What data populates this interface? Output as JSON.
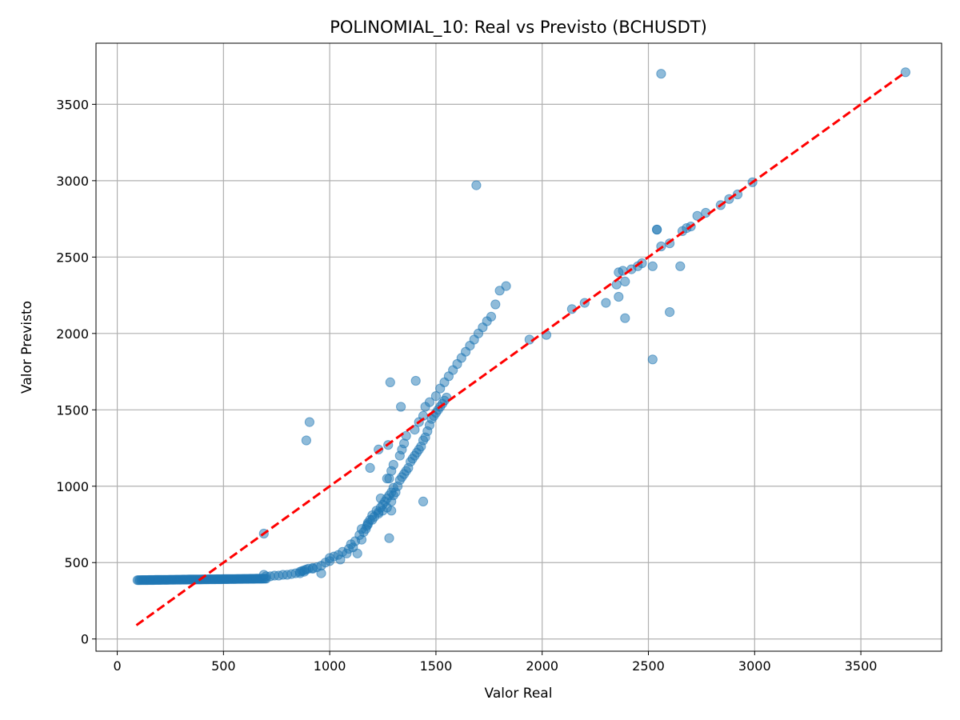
{
  "chart_data": {
    "type": "scatter",
    "title": "POLINOMIAL_10: Real vs Previsto (BCHUSDT)",
    "xlabel": "Valor Real",
    "ylabel": "Valor Previsto",
    "xlim": [
      -100,
      3880
    ],
    "ylim": [
      -80,
      3900
    ],
    "xticks": [
      0,
      500,
      1000,
      1500,
      2000,
      2500,
      3000,
      3500
    ],
    "yticks": [
      0,
      500,
      1000,
      1500,
      2000,
      2500,
      3000,
      3500
    ],
    "grid": true,
    "legend": "none",
    "colors": {
      "points": "#1f77b4",
      "reference_line": "#ff0000",
      "grid": "#b0b0b0"
    },
    "reference_line": {
      "style": "dashed",
      "x": [
        90,
        3710
      ],
      "y": [
        90,
        3710
      ]
    },
    "series": [
      {
        "flat_region": {
          "x_start": 95,
          "x_end": 700,
          "x_step": 6,
          "y_start": 385,
          "y_end": 395
        },
        "x": [
          700,
          720,
          740,
          760,
          780,
          800,
          820,
          840,
          860,
          870,
          880,
          890,
          900,
          920,
          940,
          960,
          980,
          1000,
          690,
          860,
          880,
          920,
          960,
          1000,
          1020,
          1040,
          1050,
          1060,
          1080,
          1090,
          1100,
          1110,
          1120,
          1130,
          1140,
          1150,
          1160,
          1170,
          1175,
          1180,
          1190,
          1200,
          1210,
          1220,
          1230,
          1240,
          1250,
          1260,
          1270,
          1280,
          1290,
          1300,
          1150,
          1180,
          1200,
          1230,
          1250,
          1270,
          1290,
          1300,
          1310,
          1320,
          1330,
          1340,
          1350,
          1360,
          1370,
          1380,
          1390,
          1400,
          1410,
          1420,
          1430,
          1440,
          1450,
          1460,
          1470,
          1480,
          1490,
          1500,
          1510,
          1520,
          1530,
          1540,
          1550,
          1280,
          1290,
          1300,
          1330,
          1340,
          1350,
          1360,
          1400,
          1420,
          1440,
          1450,
          1470,
          1500,
          1520,
          1540,
          1560,
          1580,
          1600,
          1620,
          1640,
          1660,
          1680,
          1700,
          1720,
          1740,
          1760,
          1780,
          1800,
          1830,
          1190,
          1230,
          1275,
          1285,
          1335,
          1405,
          1440,
          1280,
          1290,
          1240,
          1270,
          890,
          905,
          690,
          1690,
          1940,
          2020,
          2140,
          2200,
          2300,
          2350,
          2360,
          2390,
          2420,
          2450,
          2470,
          2520,
          2540,
          2560,
          2600,
          2660,
          2680,
          2700,
          2730,
          2770,
          2840,
          2880,
          2920,
          2990,
          3710,
          2360,
          2390,
          2520,
          2600,
          2650,
          2540,
          2560,
          2380
        ],
        "y": [
          410,
          410,
          415,
          415,
          420,
          420,
          425,
          430,
          440,
          445,
          450,
          455,
          460,
          465,
          470,
          480,
          500,
          510,
          420,
          430,
          440,
          460,
          430,
          530,
          540,
          550,
          520,
          570,
          560,
          590,
          620,
          600,
          640,
          560,
          680,
          650,
          700,
          720,
          740,
          760,
          780,
          810,
          800,
          840,
          830,
          860,
          880,
          900,
          920,
          940,
          960,
          990,
          720,
          750,
          780,
          820,
          840,
          860,
          900,
          940,
          960,
          1000,
          1040,
          1060,
          1080,
          1100,
          1120,
          1160,
          1180,
          1200,
          1220,
          1240,
          1260,
          1300,
          1320,
          1360,
          1400,
          1440,
          1460,
          1480,
          1500,
          1520,
          1540,
          1560,
          1580,
          1050,
          1100,
          1140,
          1200,
          1240,
          1280,
          1330,
          1370,
          1420,
          1460,
          1520,
          1550,
          1590,
          1640,
          1680,
          1720,
          1760,
          1800,
          1840,
          1880,
          1920,
          1960,
          2000,
          2040,
          2080,
          2110,
          2190,
          2280,
          2310,
          1120,
          1240,
          1270,
          1680,
          1520,
          1690,
          900,
          660,
          840,
          920,
          1050,
          1300,
          1420,
          690,
          2970,
          1960,
          1990,
          2160,
          2200,
          2200,
          2320,
          2400,
          2340,
          2420,
          2440,
          2460,
          2440,
          2680,
          2570,
          2590,
          2670,
          2690,
          2700,
          2770,
          2790,
          2840,
          2880,
          2910,
          2990,
          3710,
          2240,
          2100,
          1830,
          2140,
          2440,
          2680,
          3700,
          2410
        ]
      }
    ]
  }
}
